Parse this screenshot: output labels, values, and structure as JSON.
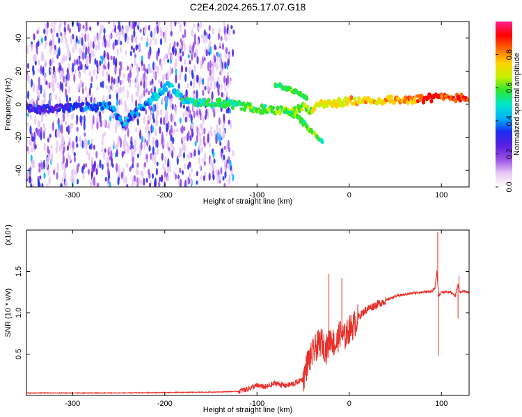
{
  "title": "C2E4.2024.265.17.07.G18",
  "chart_data": [
    {
      "type": "heatmap",
      "name": "spectrogram",
      "xlabel": "Height of straight line (km)",
      "ylabel": "Frequency (Hz)",
      "xlim": [
        -350,
        130
      ],
      "ylim": [
        -50,
        50
      ],
      "xticks": [
        -300,
        -200,
        -100,
        0,
        100
      ],
      "yticks": [
        -40,
        -20,
        0,
        20,
        40
      ],
      "colorbar": {
        "label": "Normalized spectral amplitude",
        "range": [
          0.0,
          1.0
        ],
        "ticks": [
          0.0,
          0.2,
          0.4,
          0.6,
          0.8
        ],
        "colormap": [
          "#ffffff",
          "#e6c8f5",
          "#9b4fe6",
          "#5a1fe0",
          "#1a2cf0",
          "#00b4ff",
          "#00e6c8",
          "#2ee62e",
          "#c8f000",
          "#ffd200",
          "#ff6a00",
          "#ff0000",
          "#ff1e8c"
        ]
      },
      "features": [
        {
          "label": "noise",
          "x_range": [
            -350,
            -125
          ],
          "freq_range": [
            -50,
            50
          ]
        },
        {
          "label": "main line",
          "points": [
            [
              -350,
              -3
            ],
            [
              -300,
              -2
            ],
            [
              -260,
              -1
            ],
            [
              -245,
              -12
            ],
            [
              -230,
              -4
            ],
            [
              -210,
              5
            ],
            [
              -195,
              12
            ],
            [
              -180,
              2
            ],
            [
              -150,
              1
            ],
            [
              -125,
              0
            ],
            [
              -110,
              -2
            ],
            [
              -90,
              -3
            ],
            [
              -80,
              -4
            ],
            [
              -70,
              -3
            ],
            [
              -60,
              -5
            ],
            [
              -50,
              -1
            ],
            [
              -40,
              -5
            ],
            [
              -35,
              0
            ],
            [
              -25,
              0
            ],
            [
              -10,
              1
            ],
            [
              0,
              2
            ],
            [
              30,
              2
            ],
            [
              60,
              3
            ],
            [
              100,
              4
            ],
            [
              130,
              4
            ]
          ]
        },
        {
          "label": "upper branch",
          "points": [
            [
              -80,
              12
            ],
            [
              -70,
              10
            ],
            [
              -60,
              8
            ],
            [
              -52,
              6
            ],
            [
              -45,
              4
            ]
          ]
        },
        {
          "label": "lower branch",
          "points": [
            [
              -70,
              -4
            ],
            [
              -55,
              -8
            ],
            [
              -45,
              -14
            ],
            [
              -35,
              -20
            ],
            [
              -28,
              -23
            ]
          ]
        }
      ]
    },
    {
      "type": "line",
      "name": "snr",
      "xlabel": "Height of straight line (km)",
      "ylabel": "SNR (10 * v/v)",
      "multiplier": "(x10⁴)",
      "xlim": [
        -350,
        130
      ],
      "ylim": [
        0,
        2.0
      ],
      "xticks": [
        -300,
        -200,
        -100,
        0,
        100
      ],
      "yticks": [
        0.5,
        1.0,
        1.5
      ],
      "ytick_labels": [
        "0.5",
        "1.0",
        "1.5"
      ],
      "color": "#e8302a",
      "x": [
        -350,
        -300,
        -250,
        -200,
        -150,
        -120,
        -110,
        -100,
        -90,
        -80,
        -70,
        -60,
        -50,
        -45,
        -40,
        -35,
        -30,
        -25,
        -20,
        -15,
        -10,
        -5,
        0,
        5,
        10,
        15,
        20,
        30,
        40,
        50,
        60,
        70,
        80,
        90,
        93,
        95,
        97,
        100,
        110,
        115,
        118,
        120,
        125,
        130
      ],
      "values": [
        0.03,
        0.03,
        0.03,
        0.035,
        0.04,
        0.05,
        0.08,
        0.12,
        0.1,
        0.15,
        0.12,
        0.14,
        0.2,
        0.4,
        0.5,
        0.6,
        0.65,
        0.55,
        0.7,
        0.6,
        0.75,
        0.7,
        0.8,
        0.85,
        0.95,
        1.0,
        1.05,
        1.1,
        1.15,
        1.2,
        1.22,
        1.24,
        1.25,
        1.26,
        1.3,
        1.5,
        1.2,
        1.25,
        1.25,
        1.2,
        1.35,
        1.25,
        1.26,
        1.24
      ],
      "spikes": [
        {
          "x": -22,
          "value": 1.47
        },
        {
          "x": -8,
          "value": 1.42
        },
        {
          "x": 96,
          "value": 1.98
        },
        {
          "x": 96.5,
          "value": 0.48
        },
        {
          "x": 119,
          "value": 1.45
        },
        {
          "x": 118,
          "value": 0.93
        }
      ]
    }
  ]
}
